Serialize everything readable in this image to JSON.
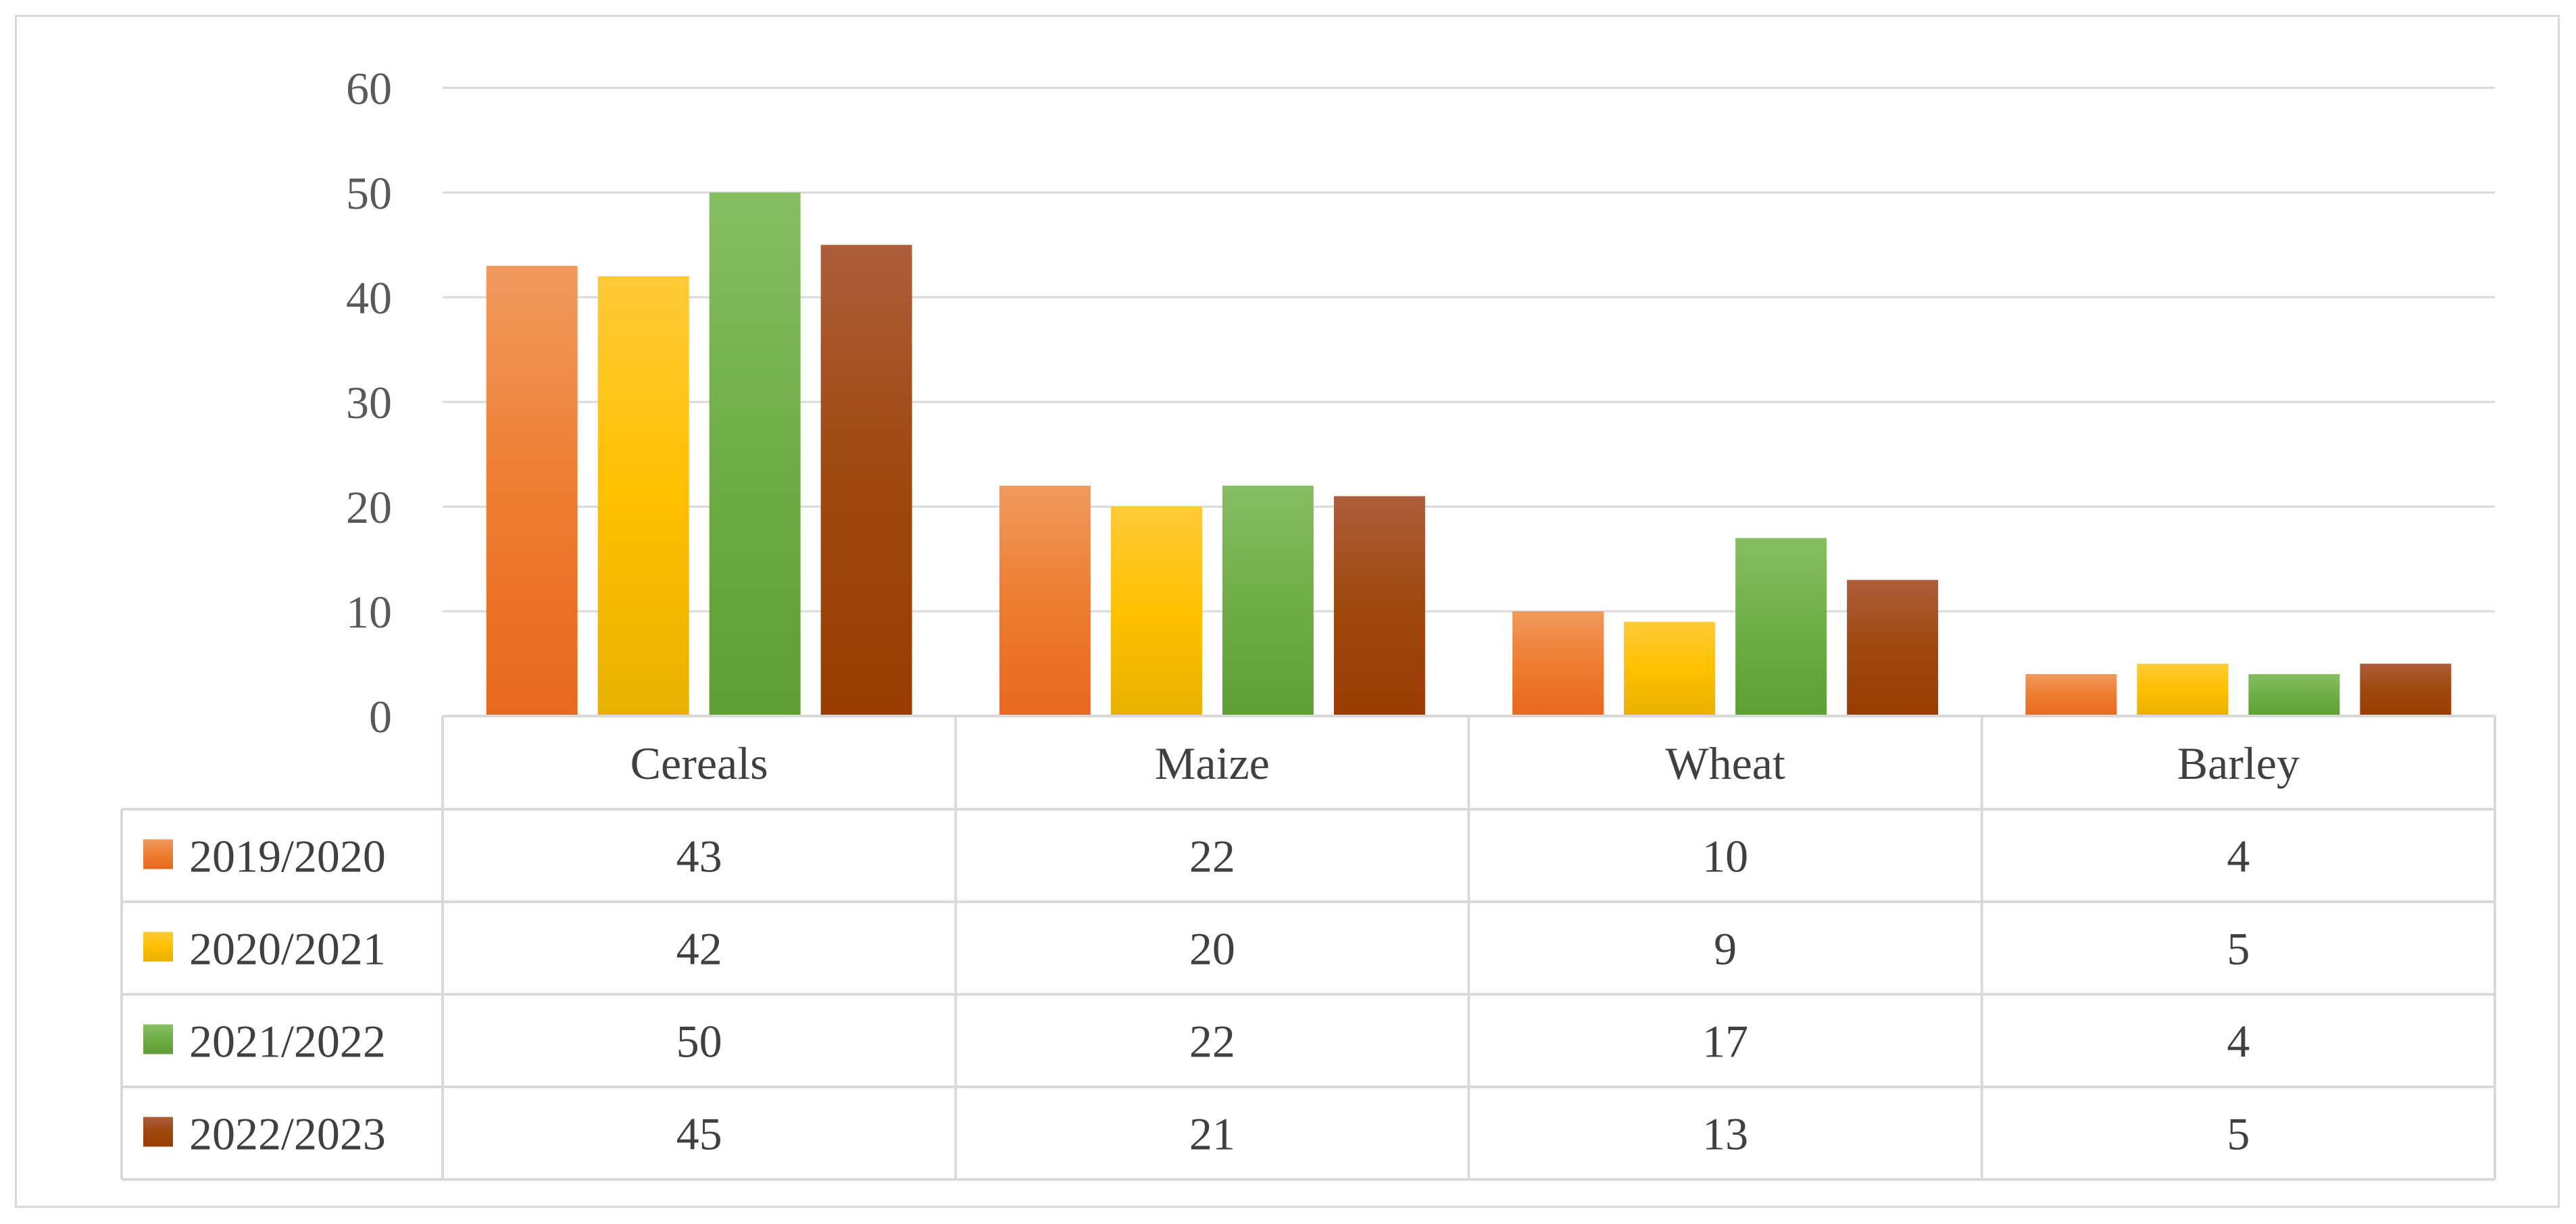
{
  "chart_data": {
    "type": "bar",
    "title": "",
    "xlabel": "",
    "ylabel": "",
    "ylim": [
      0,
      60
    ],
    "yticks": [
      0,
      10,
      20,
      30,
      40,
      50,
      60
    ],
    "ytick_labels": [
      "0",
      "10",
      "20",
      "30",
      "40",
      "50",
      "60"
    ],
    "grid": true,
    "legend": "data-table",
    "categories": [
      "Cereals",
      "Maize",
      "Wheat",
      "Barley"
    ],
    "series": [
      {
        "name": "2019/2020",
        "values": [
          43,
          22,
          10,
          4
        ],
        "value_labels": [
          "43",
          "22",
          "10",
          "4"
        ],
        "color": "#ed7d31",
        "color_light": "#f19a5e",
        "color_dark": "#e8681e"
      },
      {
        "name": "2020/2021",
        "values": [
          42,
          20,
          9,
          5
        ],
        "value_labels": [
          "42",
          "20",
          "9",
          "5"
        ],
        "color": "#ffc000",
        "color_light": "#ffca38",
        "color_dark": "#e8b000"
      },
      {
        "name": "2021/2022",
        "values": [
          50,
          22,
          17,
          4
        ],
        "value_labels": [
          "50",
          "22",
          "17",
          "4"
        ],
        "color": "#70ad47",
        "color_light": "#86be63",
        "color_dark": "#5e9e33"
      },
      {
        "name": "2022/2023",
        "values": [
          45,
          21,
          13,
          5
        ],
        "value_labels": [
          "45",
          "21",
          "13",
          "5"
        ],
        "color": "#9e480e",
        "color_light": "#ad5d3a",
        "color_dark": "#9a3c02"
      }
    ]
  }
}
